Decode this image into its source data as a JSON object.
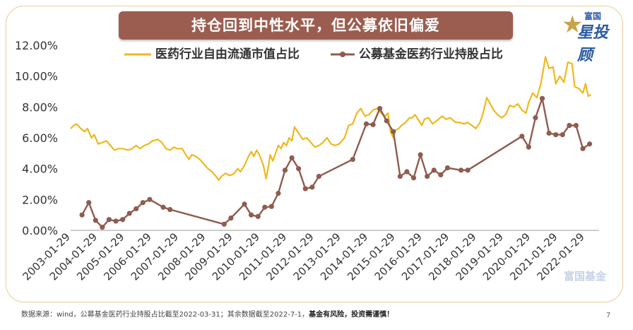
{
  "title": "持仓回到中性水平，但公募依旧偏爱",
  "logo": {
    "top": "富国",
    "main": "星投顾"
  },
  "watermark": "富国基金",
  "footer": {
    "source": "数据来源：wind，公募基金医药行业持股占比截至2022-03-31；其余数据截至2022-7-1，",
    "risk": "基金有风险，投资需谨慎！"
  },
  "page_number": "7",
  "colors": {
    "frame": "#e6cf98",
    "banner": "#9b5d4f",
    "series1": "#f0b81e",
    "series2": "#8f5c4f",
    "logo": "#2a5aa3"
  },
  "chart_data": {
    "type": "line",
    "y_tick_labels": [
      "0.00%",
      "2.00%",
      "4.00%",
      "6.00%",
      "8.00%",
      "10.00%",
      "12.00%"
    ],
    "ylim": [
      0,
      12
    ],
    "x_tick_labels": [
      "2003-01-29",
      "2004-01-29",
      "2005-01-29",
      "2006-01-29",
      "2007-01-29",
      "2008-01-29",
      "2009-01-29",
      "2010-01-29",
      "2011-01-29",
      "2012-01-29",
      "2013-01-29",
      "2014-01-29",
      "2015-01-29",
      "2016-01-29",
      "2017-01-29",
      "2018-01-29",
      "2019-01-29",
      "2020-01-29",
      "2021-01-29",
      "2022-01-29"
    ],
    "xlim": [
      2003.08,
      2022.6
    ],
    "grid": false,
    "legend_position": "top-left",
    "series": [
      {
        "name": "医药行业自由流通市值占比",
        "color": "#f0b81e",
        "marker": false,
        "points": [
          [
            2003.08,
            6.6
          ],
          [
            2003.2,
            6.8
          ],
          [
            2003.3,
            6.9
          ],
          [
            2003.45,
            6.6
          ],
          [
            2003.6,
            6.4
          ],
          [
            2003.7,
            6.6
          ],
          [
            2003.85,
            6.0
          ],
          [
            2003.95,
            6.2
          ],
          [
            2004.1,
            5.6
          ],
          [
            2004.25,
            5.7
          ],
          [
            2004.4,
            5.8
          ],
          [
            2004.55,
            5.5
          ],
          [
            2004.7,
            5.2
          ],
          [
            2004.85,
            5.3
          ],
          [
            2005.0,
            5.3
          ],
          [
            2005.2,
            5.2
          ],
          [
            2005.35,
            5.3
          ],
          [
            2005.5,
            5.5
          ],
          [
            2005.65,
            5.3
          ],
          [
            2005.8,
            5.5
          ],
          [
            2005.95,
            5.6
          ],
          [
            2006.1,
            5.8
          ],
          [
            2006.3,
            5.9
          ],
          [
            2006.45,
            5.7
          ],
          [
            2006.6,
            5.3
          ],
          [
            2006.75,
            5.2
          ],
          [
            2006.9,
            5.4
          ],
          [
            2007.0,
            5.3
          ],
          [
            2007.2,
            5.3
          ],
          [
            2007.3,
            5.0
          ],
          [
            2007.45,
            4.6
          ],
          [
            2007.55,
            4.9
          ],
          [
            2007.7,
            4.8
          ],
          [
            2007.85,
            4.6
          ],
          [
            2008.0,
            4.3
          ],
          [
            2008.15,
            4.0
          ],
          [
            2008.3,
            3.8
          ],
          [
            2008.45,
            3.5
          ],
          [
            2008.55,
            3.25
          ],
          [
            2008.65,
            3.5
          ],
          [
            2008.8,
            3.7
          ],
          [
            2008.95,
            3.55
          ],
          [
            2009.1,
            3.65
          ],
          [
            2009.25,
            4.0
          ],
          [
            2009.35,
            3.8
          ],
          [
            2009.5,
            4.2
          ],
          [
            2009.65,
            4.8
          ],
          [
            2009.75,
            5.1
          ],
          [
            2009.85,
            4.8
          ],
          [
            2009.95,
            5.2
          ],
          [
            2010.05,
            4.9
          ],
          [
            2010.2,
            4.2
          ],
          [
            2010.3,
            3.35
          ],
          [
            2010.4,
            4.3
          ],
          [
            2010.45,
            4.9
          ],
          [
            2010.55,
            4.5
          ],
          [
            2010.65,
            5.0
          ],
          [
            2010.75,
            5.5
          ],
          [
            2010.85,
            5.3
          ],
          [
            2010.95,
            5.7
          ],
          [
            2011.05,
            5.5
          ],
          [
            2011.15,
            6.0
          ],
          [
            2011.25,
            5.8
          ],
          [
            2011.35,
            6.7
          ],
          [
            2011.5,
            6.3
          ],
          [
            2011.65,
            5.9
          ],
          [
            2011.8,
            6.0
          ],
          [
            2011.95,
            5.7
          ],
          [
            2012.1,
            5.4
          ],
          [
            2012.25,
            5.5
          ],
          [
            2012.4,
            5.7
          ],
          [
            2012.55,
            6.0
          ],
          [
            2012.7,
            5.6
          ],
          [
            2012.85,
            5.5
          ],
          [
            2013.0,
            5.6
          ],
          [
            2013.2,
            6.0
          ],
          [
            2013.35,
            6.8
          ],
          [
            2013.5,
            6.9
          ],
          [
            2013.65,
            7.6
          ],
          [
            2013.8,
            7.9
          ],
          [
            2013.95,
            7.4
          ],
          [
            2014.1,
            7.5
          ],
          [
            2014.25,
            7.8
          ],
          [
            2014.4,
            7.9
          ],
          [
            2014.55,
            7.6
          ],
          [
            2014.7,
            7.4
          ],
          [
            2014.8,
            7.6
          ],
          [
            2014.9,
            6.4
          ],
          [
            2015.0,
            6.0
          ],
          [
            2015.08,
            6.5
          ],
          [
            2015.2,
            6.6
          ],
          [
            2015.3,
            6.8
          ],
          [
            2015.45,
            7.0
          ],
          [
            2015.6,
            7.3
          ],
          [
            2015.7,
            7.3
          ],
          [
            2015.8,
            7.5
          ],
          [
            2015.95,
            7.1
          ],
          [
            2016.05,
            6.8
          ],
          [
            2016.15,
            7.2
          ],
          [
            2016.3,
            7.3
          ],
          [
            2016.45,
            6.9
          ],
          [
            2016.6,
            7.1
          ],
          [
            2016.8,
            7.4
          ],
          [
            2016.95,
            7.2
          ],
          [
            2017.1,
            7.3
          ],
          [
            2017.3,
            7.0
          ],
          [
            2017.45,
            7.0
          ],
          [
            2017.6,
            6.9
          ],
          [
            2017.75,
            7.0
          ],
          [
            2017.9,
            6.8
          ],
          [
            2018.05,
            6.6
          ],
          [
            2018.2,
            7.0
          ],
          [
            2018.3,
            7.5
          ],
          [
            2018.45,
            8.6
          ],
          [
            2018.55,
            8.3
          ],
          [
            2018.7,
            7.8
          ],
          [
            2018.85,
            7.5
          ],
          [
            2019.0,
            7.3
          ],
          [
            2019.15,
            7.5
          ],
          [
            2019.3,
            8.1
          ],
          [
            2019.45,
            8.0
          ],
          [
            2019.6,
            8.2
          ],
          [
            2019.75,
            7.8
          ],
          [
            2019.9,
            7.6
          ],
          [
            2020.0,
            8.3
          ],
          [
            2020.15,
            8.9
          ],
          [
            2020.3,
            8.6
          ],
          [
            2020.45,
            9.5
          ],
          [
            2020.55,
            10.5
          ],
          [
            2020.62,
            11.25
          ],
          [
            2020.75,
            10.5
          ],
          [
            2020.9,
            10.6
          ],
          [
            2021.0,
            9.5
          ],
          [
            2021.15,
            10.0
          ],
          [
            2021.3,
            9.6
          ],
          [
            2021.45,
            10.9
          ],
          [
            2021.6,
            10.8
          ],
          [
            2021.7,
            9.3
          ],
          [
            2021.85,
            9.2
          ],
          [
            2022.0,
            8.9
          ],
          [
            2022.1,
            9.5
          ],
          [
            2022.2,
            8.7
          ],
          [
            2022.3,
            8.8
          ]
        ]
      },
      {
        "name": "公募基金医药行业持股占比",
        "color": "#8f5c4f",
        "marker": true,
        "points": [
          [
            2003.5,
            1.0
          ],
          [
            2003.75,
            1.8
          ],
          [
            2004.0,
            0.65
          ],
          [
            2004.25,
            0.2
          ],
          [
            2004.5,
            0.7
          ],
          [
            2004.75,
            0.6
          ],
          [
            2005.0,
            0.7
          ],
          [
            2005.25,
            1.1
          ],
          [
            2005.5,
            1.4
          ],
          [
            2005.75,
            1.8
          ],
          [
            2006.0,
            2.0
          ],
          [
            2006.5,
            1.5
          ],
          [
            2006.75,
            1.35
          ],
          [
            2008.75,
            0.4
          ],
          [
            2009.0,
            0.8
          ],
          [
            2009.5,
            1.7
          ],
          [
            2009.75,
            1.0
          ],
          [
            2010.0,
            0.9
          ],
          [
            2010.25,
            1.5
          ],
          [
            2010.5,
            1.55
          ],
          [
            2010.75,
            2.4
          ],
          [
            2011.0,
            3.9
          ],
          [
            2011.25,
            4.7
          ],
          [
            2011.5,
            4.0
          ],
          [
            2011.75,
            2.7
          ],
          [
            2012.0,
            2.8
          ],
          [
            2012.25,
            3.5
          ],
          [
            2013.5,
            4.6
          ],
          [
            2014.0,
            6.9
          ],
          [
            2014.25,
            6.85
          ],
          [
            2014.5,
            7.9
          ],
          [
            2014.75,
            7.1
          ],
          [
            2015.0,
            6.4
          ],
          [
            2015.25,
            3.5
          ],
          [
            2015.5,
            3.8
          ],
          [
            2015.75,
            3.4
          ],
          [
            2016.0,
            4.9
          ],
          [
            2016.25,
            3.5
          ],
          [
            2016.5,
            3.9
          ],
          [
            2016.75,
            3.6
          ],
          [
            2017.0,
            4.05
          ],
          [
            2017.5,
            3.9
          ],
          [
            2017.75,
            3.9
          ],
          [
            2019.75,
            6.1
          ],
          [
            2020.0,
            5.4
          ],
          [
            2020.25,
            7.3
          ],
          [
            2020.5,
            8.55
          ],
          [
            2020.75,
            6.3
          ],
          [
            2021.0,
            6.2
          ],
          [
            2021.25,
            6.2
          ],
          [
            2021.5,
            6.8
          ],
          [
            2021.75,
            6.8
          ],
          [
            2022.0,
            5.3
          ],
          [
            2022.25,
            5.6
          ]
        ]
      }
    ]
  }
}
